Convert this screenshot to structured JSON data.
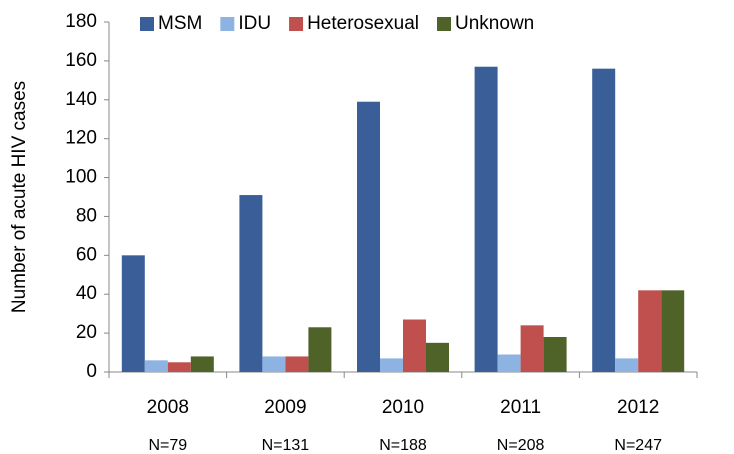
{
  "chart_data": {
    "type": "bar",
    "y_label": "Number of acute HIV cases",
    "categories": [
      "2008",
      "2009",
      "2010",
      "2011",
      "2012"
    ],
    "category_notes": [
      "N=79",
      "N=131",
      "N=188",
      "N=208",
      "N=247"
    ],
    "series": [
      {
        "name": "MSM",
        "color": "#3a5f98",
        "values": [
          60,
          91,
          139,
          157,
          156
        ]
      },
      {
        "name": "IDU",
        "color": "#8db3e2",
        "values": [
          6,
          8,
          7,
          9,
          7
        ]
      },
      {
        "name": "Heterosexual",
        "color": "#c0504d",
        "values": [
          5,
          8,
          27,
          24,
          42
        ]
      },
      {
        "name": "Unknown",
        "color": "#4f6228",
        "values": [
          8,
          23,
          15,
          18,
          42
        ]
      }
    ],
    "ylim": [
      0,
      180
    ],
    "yticks": [
      0,
      20,
      40,
      60,
      80,
      100,
      120,
      140,
      160,
      180
    ],
    "grid": false,
    "legend": "top"
  }
}
